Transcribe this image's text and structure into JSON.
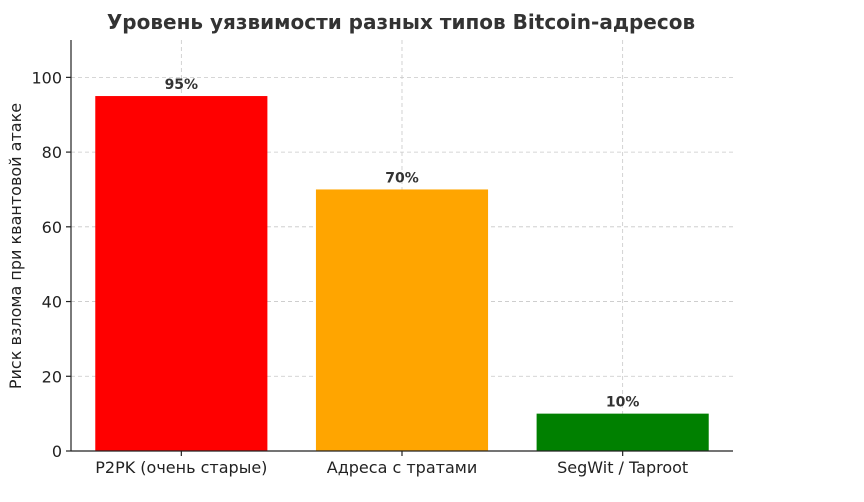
{
  "chart_data": {
    "type": "bar",
    "title": "Уровень уязвимости разных типов Bitcoin-адресов",
    "xlabel": "",
    "ylabel": "Риск взлома при квантовой атаке",
    "categories": [
      "P2PK (очень старые)",
      "Адреса с тратами",
      "SegWit / Taproot"
    ],
    "values": [
      95,
      70,
      10
    ],
    "data_labels": [
      "95%",
      "70%",
      "10%"
    ],
    "colors": [
      "#ff0000",
      "#ffa500",
      "#008000"
    ],
    "ylim": [
      0,
      110
    ],
    "yticks": [
      0,
      20,
      40,
      60,
      80,
      100
    ],
    "grid": true
  }
}
